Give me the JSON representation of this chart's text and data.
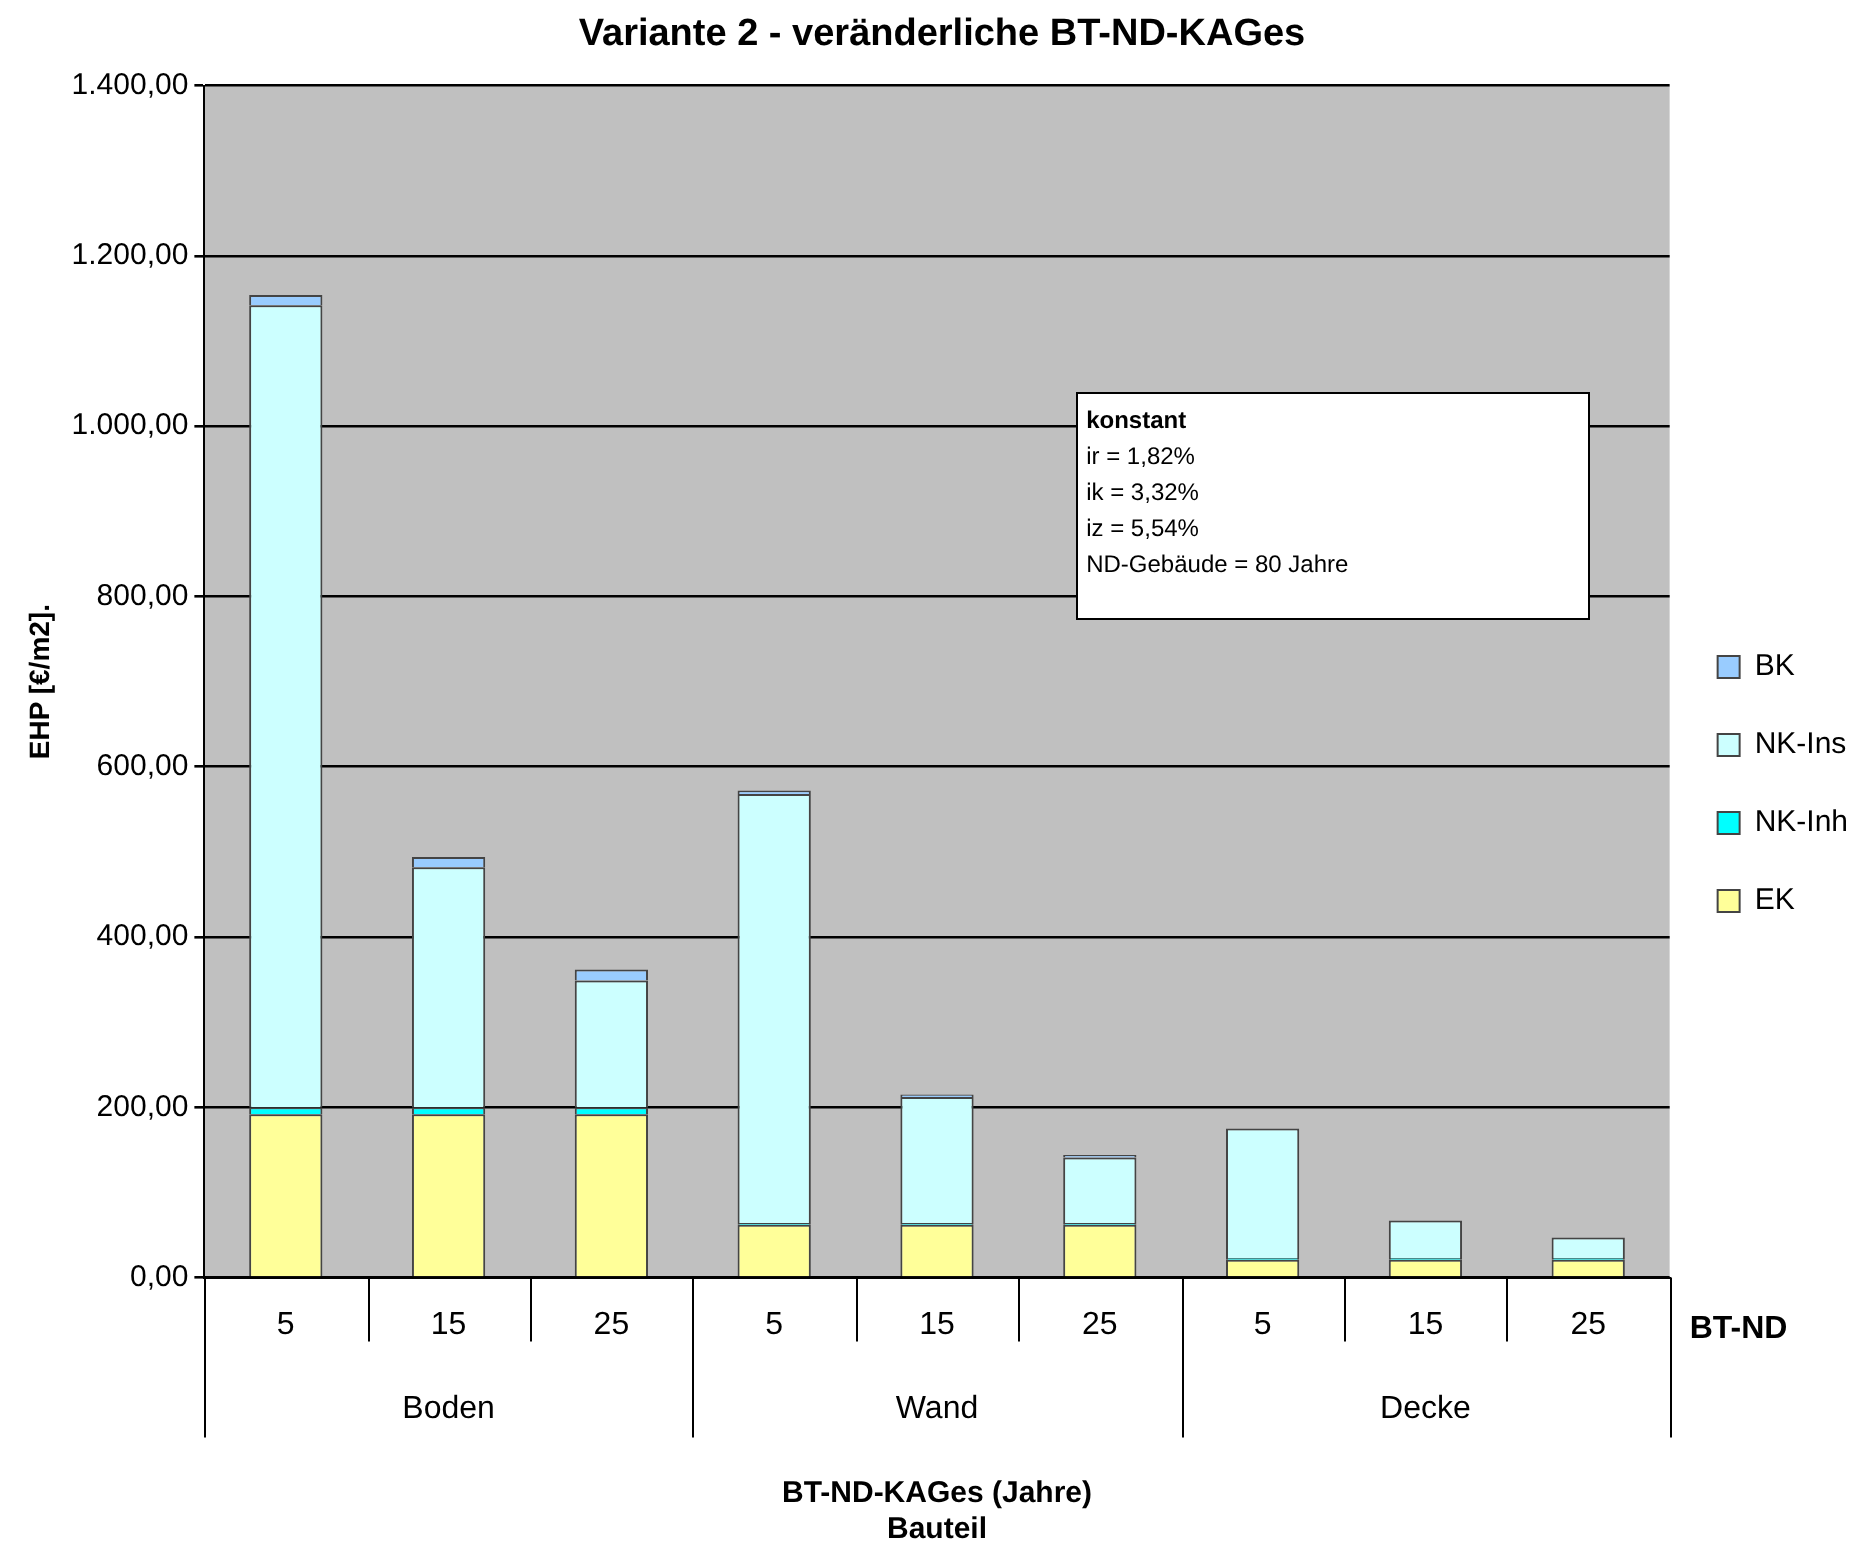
{
  "chart_data": {
    "type": "bar",
    "title": "Variante 2 - veränderliche BT-ND-KAGes",
    "xlabel": "BT-ND-KAGes (Jahre)\nBauteil",
    "ylabel": "EHP [€/m2].",
    "categories": [
      "5",
      "15",
      "25",
      "5",
      "15",
      "25",
      "5",
      "15",
      "25"
    ],
    "stacked": true,
    "series": [
      {
        "name": "EK",
        "color": "#ffff99",
        "values": [
          192,
          192,
          192,
          62,
          62,
          62,
          21,
          21,
          21
        ]
      },
      {
        "name": "NK-Inh",
        "color": "#00ffff",
        "values": [
          8,
          8,
          8,
          2,
          2,
          2,
          2,
          2,
          2
        ]
      },
      {
        "name": "NK-Ins",
        "color": "#ccffff",
        "values": [
          942,
          282,
          149,
          504,
          148,
          77,
          152,
          44,
          24
        ]
      },
      {
        "name": "BK",
        "color": "#99ccff",
        "values": [
          12,
          12,
          13,
          4,
          3,
          3,
          0,
          0,
          0
        ]
      }
    ],
    "ylim": [
      0,
      1400
    ],
    "yticks": [
      {
        "value": 0,
        "label": "0,00"
      },
      {
        "value": 200,
        "label": "200,00"
      },
      {
        "value": 400,
        "label": "400,00"
      },
      {
        "value": 600,
        "label": "600,00"
      },
      {
        "value": 800,
        "label": "800,00"
      },
      {
        "value": 1000,
        "label": "1.000,00"
      },
      {
        "value": 1200,
        "label": "1.200,00"
      },
      {
        "value": 1400,
        "label": "1.400,00"
      }
    ],
    "grid": "y",
    "legend": "right",
    "annotations": [
      "konstant\nir = 1,82%\nik = 3,32%\niz = 5,54%\nND-Gebäude = 80 Jahre",
      "BT-ND",
      "Boden",
      "Wand",
      "Decke"
    ]
  }
}
